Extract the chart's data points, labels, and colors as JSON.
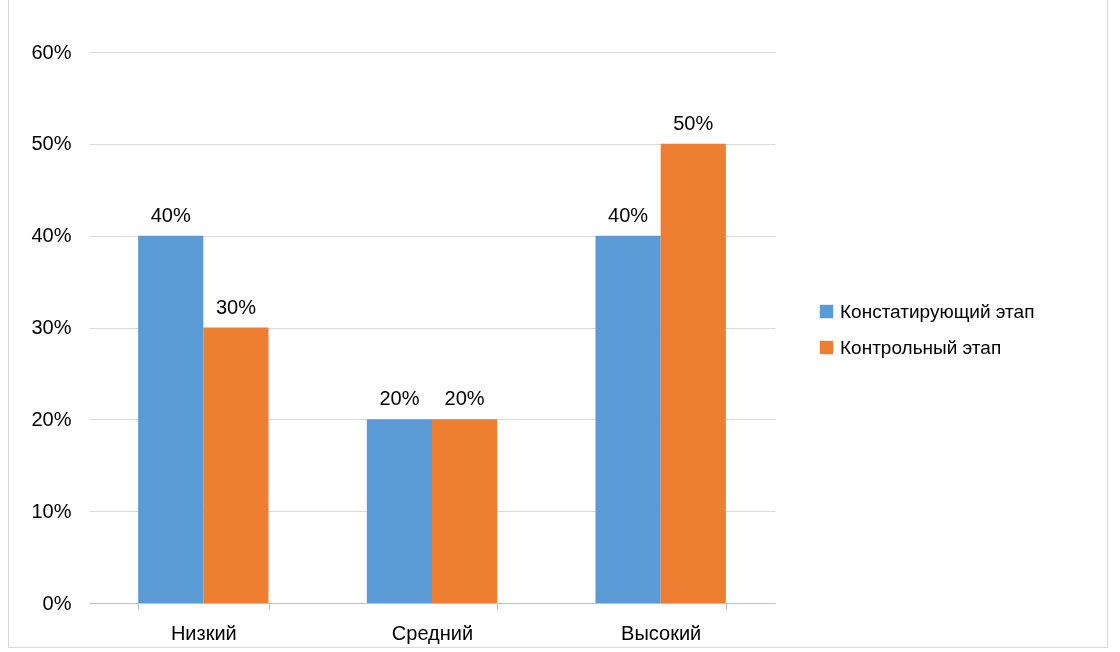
{
  "chart_data": {
    "type": "bar",
    "categories": [
      "Низкий",
      "Средний",
      "Высокий"
    ],
    "series": [
      {
        "name": "Констатирующий этап",
        "color": "#5b9bd5",
        "values": [
          40,
          20,
          40
        ],
        "value_labels": [
          "40%",
          "20%",
          "40%"
        ]
      },
      {
        "name": "Контрольный этап",
        "color": "#ed7d31",
        "values": [
          30,
          20,
          50
        ],
        "value_labels": [
          "30%",
          "20%",
          "50%"
        ]
      }
    ],
    "ylim": [
      0,
      60
    ],
    "yticks": [
      {
        "value": 0,
        "label": "0%"
      },
      {
        "value": 10,
        "label": "10%"
      },
      {
        "value": 20,
        "label": "20%"
      },
      {
        "value": 30,
        "label": "30%"
      },
      {
        "value": 40,
        "label": "40%"
      },
      {
        "value": 50,
        "label": "50%"
      },
      {
        "value": 60,
        "label": "60%"
      }
    ],
    "grid": "y",
    "legend": "right"
  }
}
